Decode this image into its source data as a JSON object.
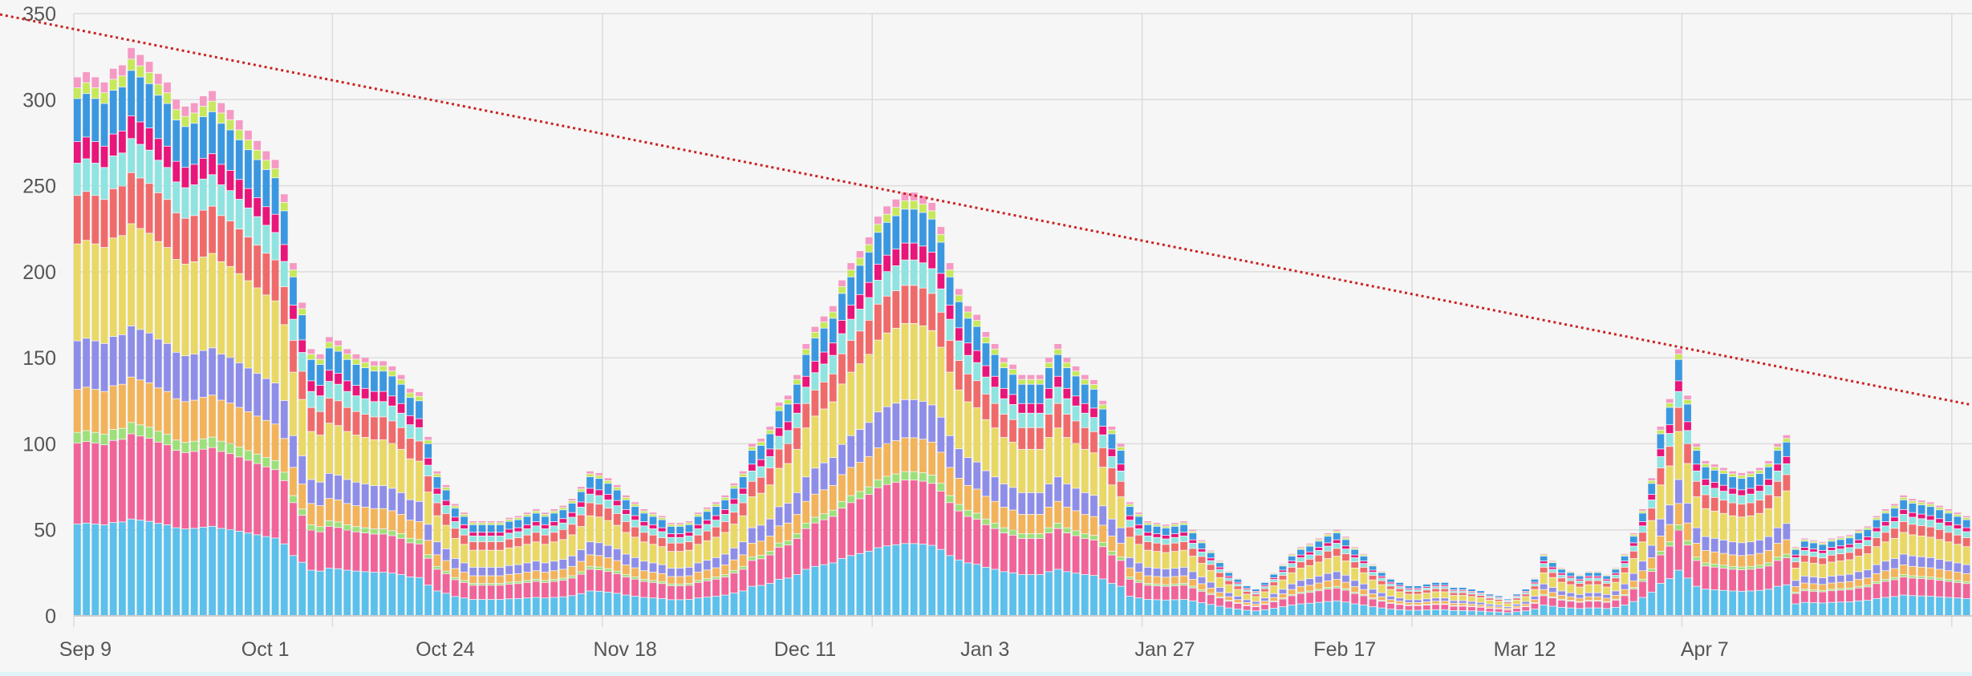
{
  "chart_data": {
    "type": "bar",
    "stacked": true,
    "ylim": [
      0,
      350
    ],
    "y_ticks": [
      0,
      50,
      100,
      150,
      200,
      250,
      300,
      350
    ],
    "x_tick_labels": [
      "Sep 9",
      "Oct 1",
      "Oct 24",
      "Nov 18",
      "Dec 11",
      "Jan 3",
      "Jan 27",
      "Feb 17",
      "Mar 12",
      "Apr 7"
    ],
    "x_tick_bar_index": [
      0,
      20,
      40,
      60,
      80,
      100,
      120,
      140,
      160,
      180
    ],
    "grid": true,
    "legend": "none",
    "totals": [
      313,
      316,
      313,
      310,
      318,
      320,
      330,
      326,
      322,
      315,
      310,
      300,
      296,
      298,
      302,
      305,
      298,
      294,
      288,
      282,
      276,
      270,
      265,
      245,
      205,
      182,
      155,
      152,
      162,
      160,
      155,
      152,
      150,
      148,
      148,
      145,
      140,
      132,
      130,
      104,
      84,
      76,
      65,
      60,
      55,
      55,
      55,
      55,
      57,
      58,
      60,
      62,
      60,
      62,
      64,
      68,
      75,
      84,
      83,
      80,
      76,
      70,
      66,
      62,
      60,
      58,
      54,
      54,
      55,
      60,
      63,
      66,
      70,
      77,
      84,
      100,
      103,
      110,
      124,
      128,
      140,
      158,
      168,
      174,
      180,
      195,
      205,
      212,
      220,
      232,
      238,
      242,
      246,
      246,
      244,
      240,
      226,
      205,
      190,
      180,
      175,
      165,
      158,
      150,
      146,
      140,
      140,
      140,
      150,
      158,
      150,
      145,
      140,
      137,
      125,
      110,
      100,
      66,
      60,
      55,
      54,
      53,
      54,
      55,
      50,
      44,
      38,
      32,
      26,
      22,
      18,
      16,
      20,
      25,
      30,
      36,
      40,
      42,
      45,
      48,
      50,
      46,
      40,
      36,
      30,
      26,
      22,
      20,
      18,
      18,
      19,
      20,
      20,
      17,
      17,
      16,
      15,
      13,
      12,
      10,
      13,
      16,
      22,
      36,
      32,
      28,
      26,
      24,
      26,
      26,
      24,
      28,
      36,
      48,
      62,
      80,
      110,
      126,
      155,
      128,
      100,
      90,
      88,
      86,
      84,
      83,
      84,
      86,
      90,
      100,
      105,
      40,
      45,
      44,
      43,
      45,
      46,
      47,
      50,
      52,
      58,
      62,
      65,
      70,
      68,
      67,
      66,
      64,
      62,
      60,
      58
    ]
  }
}
